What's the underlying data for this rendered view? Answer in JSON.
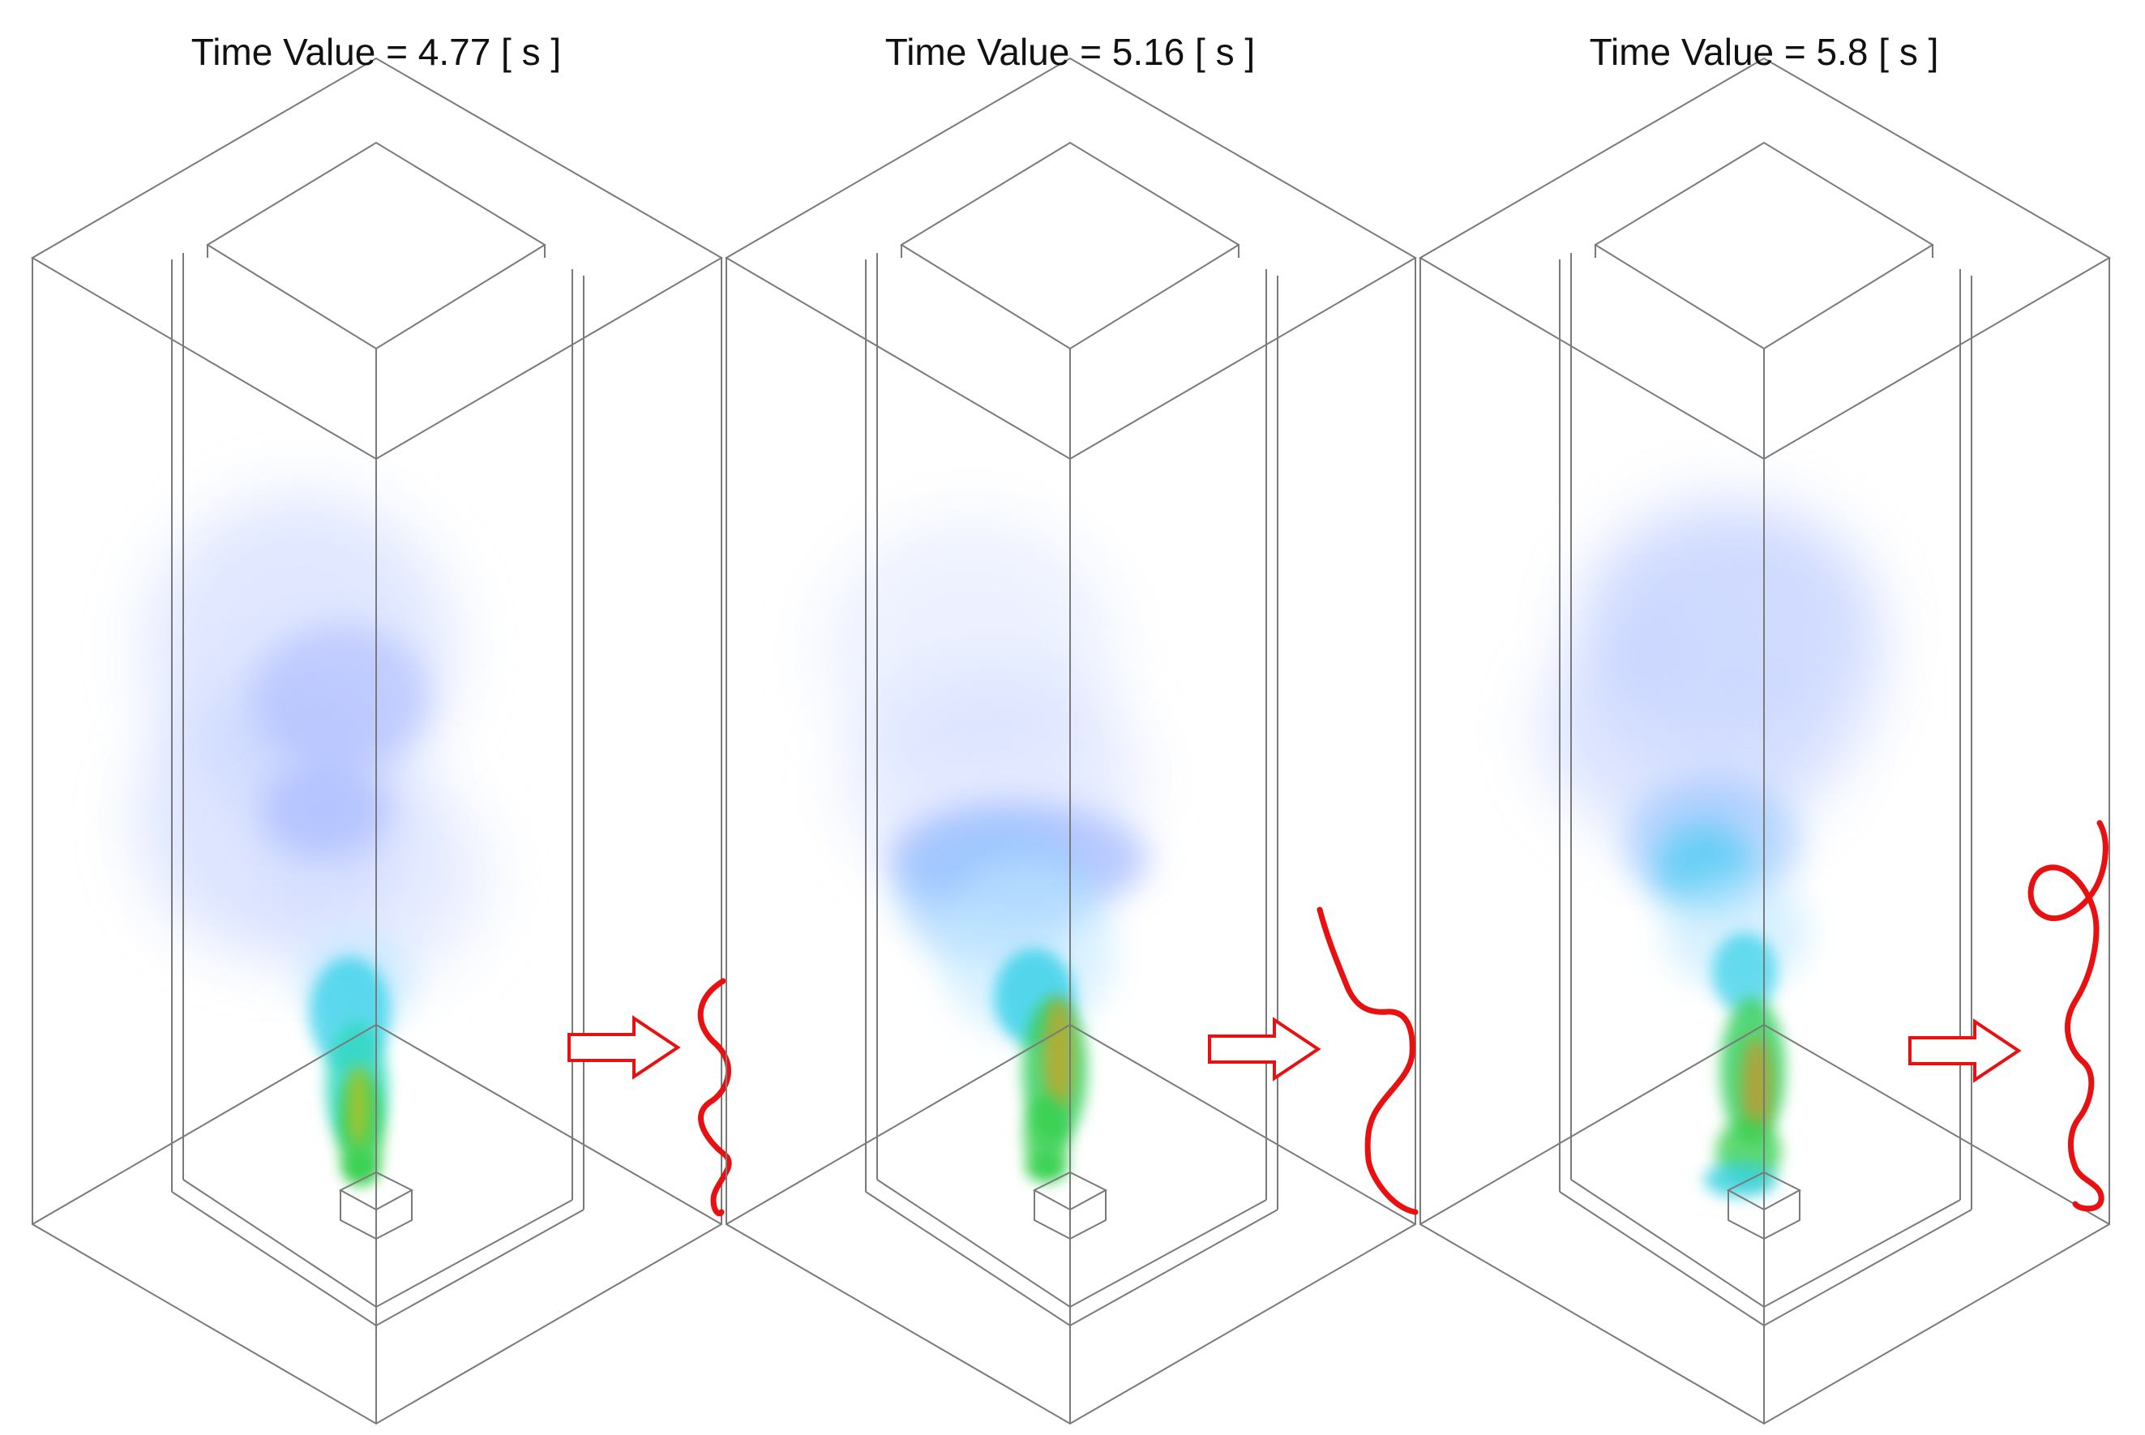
{
  "panels": [
    {
      "time_label": "Time Value = 4.77 [ s ]"
    },
    {
      "time_label": "Time Value = 5.16 [ s ]"
    },
    {
      "time_label": "Time Value = 5.8 [ s ]"
    }
  ],
  "colors": {
    "frame_line": "#7a7a7a",
    "trajectory": "#e81010",
    "arrow": "#e81010",
    "plume_low": "#8aa6ff",
    "plume_mid": "#22d8e8",
    "plume_core": "#3ad050",
    "plume_hot": "#d0b020"
  }
}
